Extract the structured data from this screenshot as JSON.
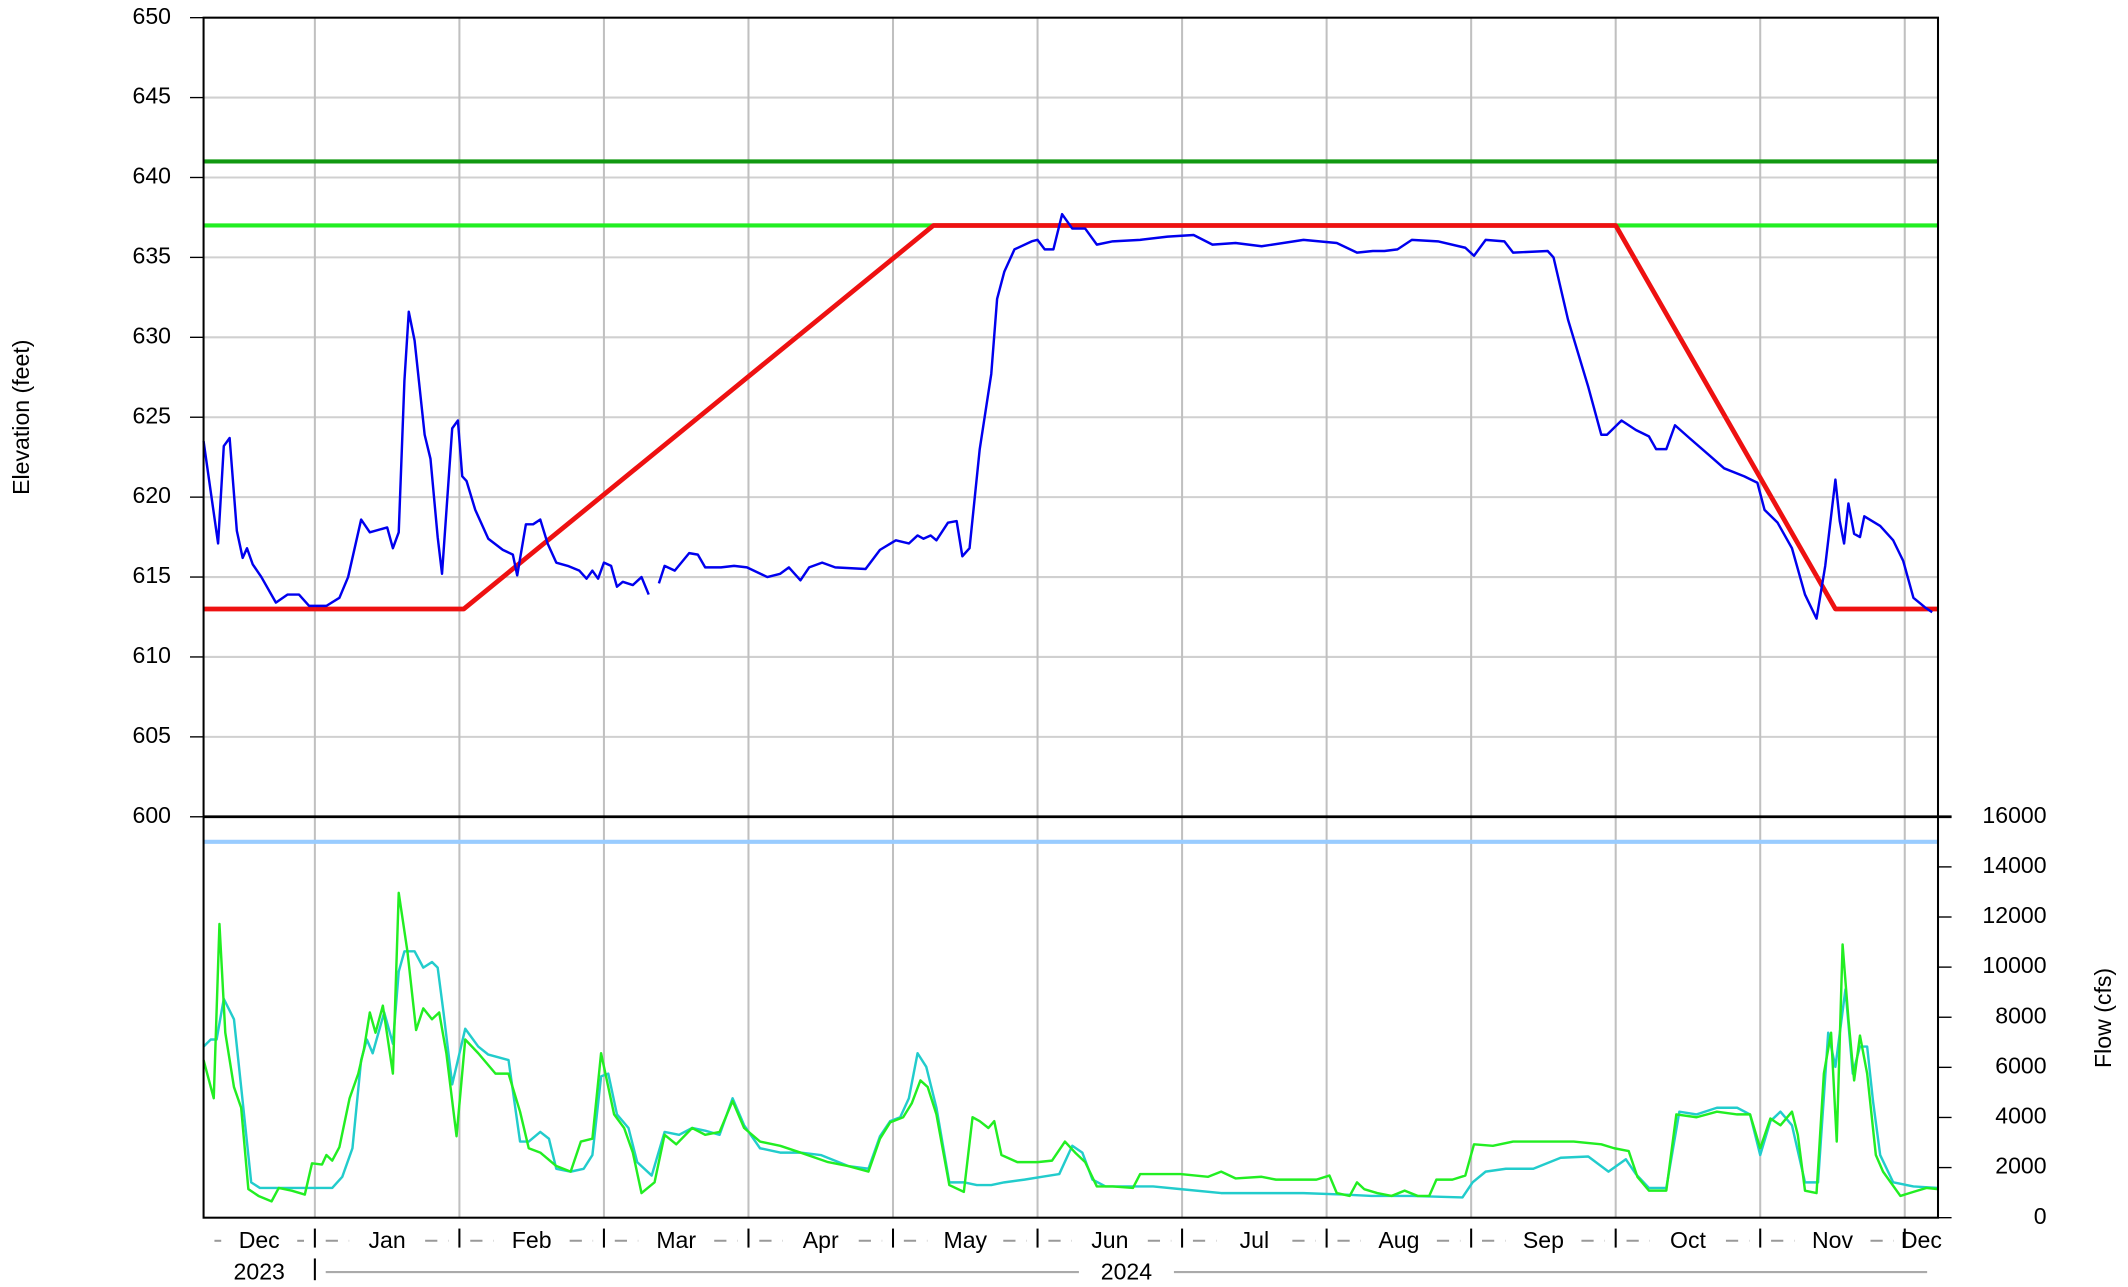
{
  "chart_data": {
    "type": "line",
    "ylabel": "Elevation (feet)",
    "y2label": "Flow (cfs)",
    "xlim": [
      0.23,
      12.23
    ],
    "xticks": [
      {
        "value": 0,
        "label": "Dec"
      },
      {
        "value": 1,
        "label": "Jan"
      },
      {
        "value": 2,
        "label": "Feb"
      },
      {
        "value": 3,
        "label": "Mar"
      },
      {
        "value": 4,
        "label": "Apr"
      },
      {
        "value": 5,
        "label": "May"
      },
      {
        "value": 6,
        "label": "Jun"
      },
      {
        "value": 7,
        "label": "Jul"
      },
      {
        "value": 8,
        "label": "Aug"
      },
      {
        "value": 9,
        "label": "Sep"
      },
      {
        "value": 10,
        "label": "Oct"
      },
      {
        "value": 11,
        "label": "Nov"
      },
      {
        "value": 12,
        "label": "Dec"
      }
    ],
    "years": [
      {
        "value": 0,
        "label": "2023"
      },
      {
        "value": 1,
        "label": "2024"
      }
    ],
    "ylim": [
      600,
      650
    ],
    "yticks": [
      600,
      605,
      610,
      615,
      620,
      625,
      630,
      635,
      640,
      645,
      650
    ],
    "y2lim": [
      0,
      16000
    ],
    "y2ticks": [
      0,
      2000,
      4000,
      6000,
      8000,
      10000,
      12000,
      14000,
      16000
    ],
    "grid": true,
    "series": [
      {
        "color": "#119911",
        "line_width": 3,
        "x": [
          0.23,
          12.23
        ],
        "values": [
          641,
          641
        ]
      },
      {
        "color": "#22ee22",
        "line_width": 3,
        "x": [
          0.23,
          12.23
        ],
        "values": [
          637,
          637
        ]
      },
      {
        "color": "#99ccff",
        "line_width": 3,
        "axis": "y2",
        "x": [
          0.23,
          12.23
        ],
        "values": [
          15000,
          15000
        ]
      },
      {
        "color": "#ee1111",
        "line_width": 3.5,
        "x": [
          0.23,
          2.03,
          5.28,
          10.0,
          11.52,
          12.23
        ],
        "values": [
          613,
          613,
          637,
          637,
          613,
          613
        ]
      },
      {
        "color": "#0000ee",
        "line_width": 1.8,
        "x": [
          0.23,
          0.33,
          0.37,
          0.41,
          0.46,
          0.5,
          0.53,
          0.57,
          0.63,
          0.73,
          0.81,
          0.89,
          0.96,
          1.08,
          1.17,
          1.23,
          1.32,
          1.38,
          1.5,
          1.54,
          1.58,
          1.62,
          1.65,
          1.69,
          1.76,
          1.8,
          1.85,
          1.88,
          1.95,
          1.99,
          2.02,
          2.05,
          2.11,
          2.2,
          2.3,
          2.37,
          2.4,
          2.46,
          2.51,
          2.56,
          2.61,
          2.67,
          2.75,
          2.83,
          2.88,
          2.92,
          2.96,
          3.0,
          3.05,
          3.09,
          3.13,
          3.2,
          3.26,
          3.31,
          null,
          3.38,
          3.42,
          3.49,
          3.59,
          3.65,
          3.7,
          3.81,
          3.9,
          3.99,
          4.13,
          4.22,
          4.28,
          4.36,
          4.42,
          4.51,
          4.6,
          4.81,
          4.91,
          5.02,
          5.11,
          5.17,
          5.21,
          5.26,
          5.3,
          5.38,
          5.44,
          5.48,
          5.53,
          5.6,
          5.68,
          5.72,
          5.77,
          5.84,
          5.96,
          6.0,
          6.05,
          6.11,
          6.17,
          6.24,
          6.33,
          6.41,
          6.52,
          6.71,
          6.9,
          7.08,
          7.21,
          7.37,
          7.55,
          7.84,
          8.07,
          8.21,
          8.32,
          8.4,
          8.49,
          8.59,
          8.77,
          8.96,
          9.02,
          9.1,
          9.23,
          9.29,
          9.53,
          9.57,
          9.67,
          9.81,
          9.9,
          9.94,
          10.04,
          10.14,
          10.23,
          10.28,
          10.35,
          10.41,
          10.51,
          10.65,
          10.75,
          10.89,
          10.98,
          11.03,
          11.12,
          11.22,
          11.31,
          11.39,
          11.45,
          11.52,
          11.55,
          11.58,
          11.61,
          11.65,
          11.69,
          11.72,
          11.83,
          11.92,
          11.99,
          12.06,
          12.14,
          12.19
        ],
        "values": [
          623.5,
          617.1,
          623.2,
          623.7,
          617.9,
          616.2,
          616.8,
          615.8,
          615.0,
          613.4,
          613.9,
          613.9,
          613.2,
          613.2,
          613.7,
          615.0,
          618.6,
          617.8,
          618.1,
          616.8,
          617.8,
          627.3,
          631.6,
          629.8,
          623.9,
          622.4,
          617.5,
          615.2,
          624.3,
          624.8,
          621.3,
          621.0,
          619.2,
          617.4,
          616.7,
          616.4,
          615.1,
          618.3,
          618.3,
          618.6,
          617.1,
          615.9,
          615.7,
          615.4,
          614.9,
          615.4,
          614.9,
          615.9,
          615.7,
          614.4,
          614.7,
          614.5,
          615.0,
          613.9,
          null,
          614.6,
          615.7,
          615.4,
          616.5,
          616.4,
          615.6,
          615.6,
          615.7,
          615.6,
          615.0,
          615.2,
          615.6,
          614.8,
          615.6,
          615.9,
          615.6,
          615.5,
          616.7,
          617.3,
          617.1,
          617.6,
          617.4,
          617.6,
          617.3,
          618.4,
          618.5,
          616.3,
          616.8,
          623.0,
          627.7,
          632.4,
          634.1,
          635.5,
          636.0,
          636.1,
          635.5,
          635.5,
          637.7,
          636.8,
          636.8,
          635.8,
          636.0,
          636.1,
          636.3,
          636.4,
          635.8,
          635.9,
          635.7,
          636.1,
          635.9,
          635.3,
          635.4,
          635.4,
          635.5,
          636.1,
          636.0,
          635.6,
          635.1,
          636.1,
          636.0,
          635.3,
          635.4,
          635.0,
          631.1,
          626.9,
          623.9,
          623.9,
          624.8,
          624.2,
          623.8,
          623.0,
          623.0,
          624.5,
          623.7,
          622.6,
          621.8,
          621.3,
          620.9,
          619.2,
          618.4,
          616.8,
          613.9,
          612.4,
          615.7,
          621.1,
          618.5,
          617.1,
          619.6,
          617.7,
          617.5,
          618.8,
          618.2,
          617.3,
          616.0,
          613.7,
          613.1,
          612.8
        ]
      },
      {
        "color": "#22cccc",
        "line_width": 1.8,
        "axis": "y2",
        "x": [
          0.23,
          0.28,
          0.32,
          0.37,
          0.44,
          0.49,
          0.56,
          0.62,
          0.89,
          1.12,
          1.19,
          1.26,
          1.32,
          1.36,
          1.4,
          1.48,
          1.54,
          1.58,
          1.62,
          1.69,
          1.75,
          1.81,
          1.85,
          1.89,
          1.95,
          2.04,
          2.13,
          2.2,
          2.34,
          2.42,
          2.48,
          2.56,
          2.62,
          2.67,
          2.77,
          2.86,
          2.92,
          2.98,
          3.03,
          3.09,
          3.17,
          3.23,
          3.33,
          3.42,
          3.52,
          3.61,
          3.7,
          3.8,
          3.89,
          3.97,
          4.08,
          4.22,
          4.36,
          4.5,
          4.69,
          4.83,
          4.91,
          4.98,
          5.05,
          5.11,
          5.17,
          5.23,
          5.3,
          5.39,
          5.49,
          5.58,
          5.68,
          5.77,
          5.91,
          6.03,
          6.15,
          6.24,
          6.31,
          6.38,
          6.47,
          6.61,
          6.8,
          6.99,
          7.27,
          7.55,
          7.84,
          8.12,
          8.31,
          8.59,
          8.94,
          9.01,
          9.1,
          9.24,
          9.43,
          9.62,
          9.81,
          9.95,
          10.07,
          10.14,
          10.23,
          10.35,
          10.44,
          10.56,
          10.7,
          10.84,
          10.93,
          11.0,
          11.07,
          11.14,
          11.22,
          11.31,
          11.4,
          11.47,
          11.52,
          11.59,
          11.64,
          11.69,
          11.74,
          11.78,
          11.83,
          11.92,
          12.06,
          12.23
        ],
        "values": [
          6830,
          7110,
          7110,
          8730,
          7920,
          5210,
          1410,
          1190,
          1190,
          1190,
          1630,
          2770,
          6290,
          7110,
          6560,
          8190,
          6940,
          9820,
          10630,
          10630,
          9980,
          10200,
          9980,
          8190,
          5320,
          7540,
          6830,
          6510,
          6290,
          3040,
          3040,
          3420,
          3150,
          1950,
          1840,
          1950,
          2500,
          5640,
          5750,
          4120,
          3580,
          2220,
          1680,
          3420,
          3310,
          3580,
          3470,
          3310,
          4770,
          3690,
          2770,
          2600,
          2600,
          2500,
          2060,
          1950,
          3250,
          3850,
          4010,
          4770,
          6560,
          6020,
          4390,
          1410,
          1410,
          1300,
          1300,
          1410,
          1520,
          1630,
          1740,
          2870,
          2600,
          1520,
          1250,
          1250,
          1250,
          1140,
          980,
          980,
          980,
          920,
          870,
          870,
          810,
          1410,
          1840,
          1950,
          1950,
          2390,
          2440,
          1840,
          2330,
          1740,
          1190,
          1190,
          4230,
          4120,
          4390,
          4390,
          4120,
          2500,
          3850,
          4230,
          3690,
          1410,
          1410,
          7380,
          6020,
          9110,
          5750,
          6830,
          6830,
          4660,
          2500,
          1410,
          1250,
          1190
        ]
      },
      {
        "color": "#22ee22",
        "line_width": 1.8,
        "axis": "y2",
        "x": [
          0.23,
          0.3,
          0.34,
          0.38,
          0.44,
          0.49,
          0.54,
          0.61,
          0.7,
          0.75,
          0.84,
          0.93,
          0.98,
          1.05,
          1.08,
          1.12,
          1.17,
          1.24,
          1.3,
          1.34,
          1.38,
          1.42,
          1.47,
          1.54,
          1.58,
          1.64,
          1.7,
          1.75,
          1.81,
          1.86,
          1.91,
          1.98,
          2.04,
          2.13,
          2.25,
          2.34,
          2.42,
          2.48,
          2.56,
          2.67,
          2.77,
          2.84,
          2.92,
          2.98,
          3.07,
          3.14,
          3.2,
          3.26,
          3.35,
          3.42,
          3.5,
          3.61,
          3.7,
          3.8,
          3.89,
          3.97,
          4.08,
          4.22,
          4.36,
          4.55,
          4.69,
          4.83,
          4.91,
          4.98,
          5.07,
          5.13,
          5.19,
          5.24,
          5.3,
          5.39,
          5.49,
          5.55,
          5.6,
          5.66,
          5.7,
          5.75,
          5.86,
          6.0,
          6.1,
          6.19,
          6.26,
          6.33,
          6.41,
          6.52,
          6.66,
          6.71,
          6.99,
          7.18,
          7.27,
          7.37,
          7.55,
          7.65,
          7.93,
          8.02,
          8.07,
          8.16,
          8.21,
          8.26,
          8.35,
          8.45,
          8.54,
          8.63,
          8.71,
          8.76,
          8.87,
          8.96,
          9.02,
          9.15,
          9.29,
          9.53,
          9.71,
          9.9,
          9.99,
          10.09,
          10.15,
          10.23,
          10.35,
          10.42,
          10.56,
          10.7,
          10.84,
          10.93,
          11.0,
          11.07,
          11.14,
          11.22,
          11.26,
          11.31,
          11.39,
          11.44,
          11.49,
          11.53,
          11.57,
          11.61,
          11.65,
          11.69,
          11.74,
          11.8,
          11.85,
          11.97,
          12.06,
          12.15,
          12.23
        ],
        "values": [
          6290,
          4770,
          11720,
          7380,
          5210,
          4390,
          1140,
          870,
          650,
          1190,
          1080,
          920,
          2170,
          2120,
          2500,
          2280,
          2820,
          4770,
          5750,
          6730,
          8190,
          7380,
          8460,
          5750,
          12960,
          10630,
          7490,
          8350,
          7920,
          8190,
          6560,
          3250,
          7110,
          6560,
          5750,
          5750,
          4230,
          2770,
          2600,
          2060,
          1840,
          3040,
          3150,
          6560,
          4120,
          3580,
          2600,
          980,
          1410,
          3310,
          2930,
          3580,
          3310,
          3420,
          4660,
          3580,
          3040,
          2870,
          2600,
          2220,
          2060,
          1840,
          3150,
          3800,
          4010,
          4560,
          5480,
          5210,
          4120,
          1300,
          1030,
          4010,
          3850,
          3580,
          3850,
          2500,
          2220,
          2220,
          2280,
          3040,
          2600,
          2220,
          1250,
          1250,
          1190,
          1740,
          1740,
          1630,
          1840,
          1570,
          1630,
          1520,
          1520,
          1680,
          980,
          870,
          1410,
          1140,
          980,
          870,
          1080,
          870,
          870,
          1520,
          1520,
          1680,
          2930,
          2870,
          3040,
          3040,
          3040,
          2930,
          2770,
          2660,
          1630,
          1080,
          1080,
          4120,
          4010,
          4230,
          4120,
          4120,
          2770,
          3960,
          3690,
          4230,
          3310,
          1080,
          980,
          5750,
          7380,
          3040,
          10900,
          7920,
          5480,
          7270,
          5750,
          2500,
          1840,
          870,
          1030,
          1190,
          1140
        ]
      }
    ]
  }
}
